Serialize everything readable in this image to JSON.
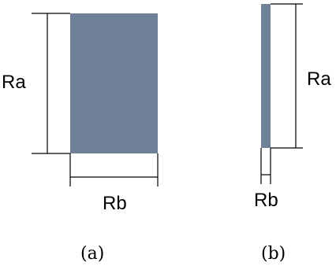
{
  "panels": [
    {
      "axis_a_label": "Ra",
      "axis_b_label": "Rb",
      "caption": "(a)"
    },
    {
      "axis_a_label": "Ra",
      "axis_b_label": "Rb",
      "caption": "(b)"
    }
  ],
  "colors": {
    "rect_fill": "#718099",
    "line": "#000000"
  }
}
